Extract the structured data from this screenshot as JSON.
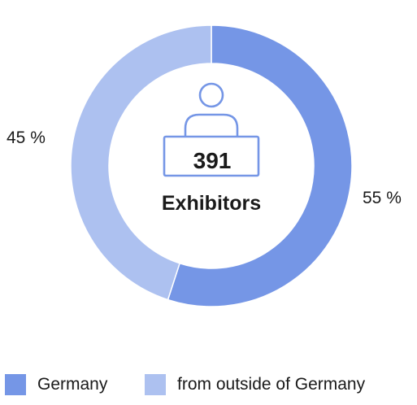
{
  "chart_data": {
    "type": "pie",
    "donut": true,
    "categories": [
      "Germany",
      "from outside of Germany"
    ],
    "values": [
      55,
      45
    ],
    "value_labels": [
      "55 %",
      "45 %"
    ],
    "colors": [
      "#7596e6",
      "#adc1f0"
    ],
    "center": {
      "value": "391",
      "label": "Exhibitors",
      "icon": "exhibitor-desk-icon"
    },
    "legend": {
      "position": "bottom",
      "entries": [
        "Germany",
        "from outside of Germany"
      ]
    }
  }
}
